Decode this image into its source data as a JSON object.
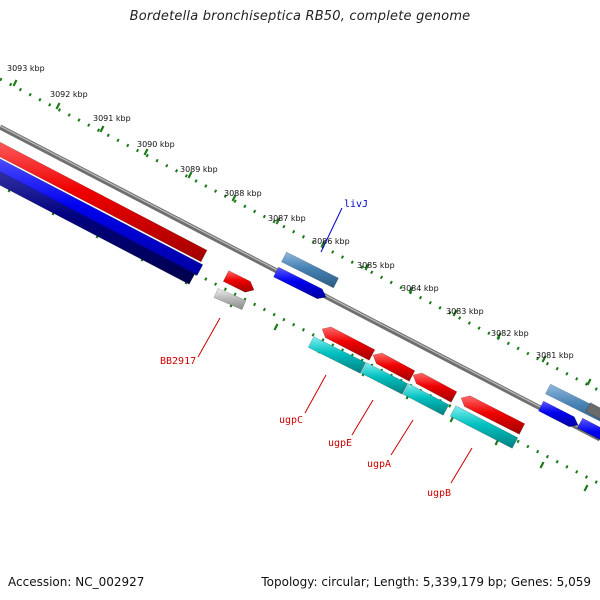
{
  "title": "Bordetella bronchiseptica RB50, complete genome",
  "footer": {
    "accession": "Accession: NC_002927",
    "topology": "Topology: circular; Length: 5,339,179 bp; Genes: 5,059"
  },
  "ticks": [
    "3093 kbp",
    "3092 kbp",
    "3091 kbp",
    "3090 kbp",
    "3089 kbp",
    "3088 kbp",
    "3087 kbp",
    "3086 kbp",
    "3085 kbp",
    "3084 kbp",
    "3083 kbp",
    "3082 kbp",
    "3081 kbp"
  ],
  "gene_labels": {
    "livJ": "livJ",
    "BB2917": "BB2917",
    "ugpC": "ugpC",
    "ugpE": "ugpE",
    "ugpA": "ugpA",
    "ugpB": "ugpB"
  },
  "colors": {
    "backbone": "#808080",
    "tick_track": "#1a7a1a",
    "cds_red": "#ee0000",
    "cds_blue": "#0000ee",
    "cds_steel": "#4682b4",
    "cds_cyan": "#00b4b4",
    "cds_navy": "#000080",
    "cds_grey": "#b4b4b4",
    "label_blue": "#0000cc",
    "label_red": "#cc0000"
  }
}
